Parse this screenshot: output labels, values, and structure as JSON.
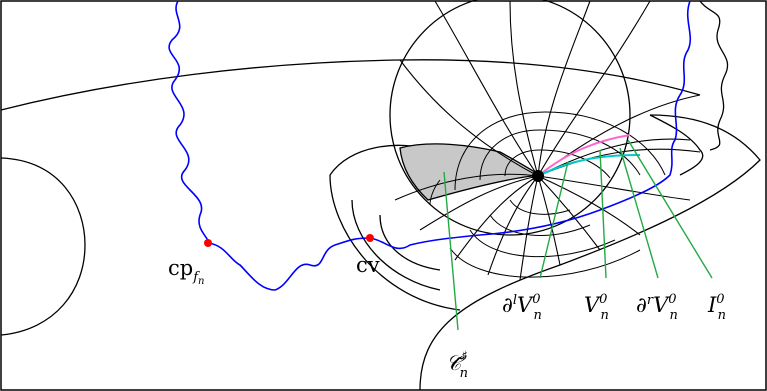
{
  "labels": {
    "cp": "cp",
    "cp_sub_f": "f",
    "cp_sub_n": "n",
    "cv": "cv",
    "dl": "∂",
    "dl_sup": "l",
    "dr": "∂",
    "dr_sup": "r",
    "V": "V",
    "I": "I",
    "n": "n",
    "zero": "0",
    "C": "𝒞̃",
    "sharp": "♯"
  },
  "colors": {
    "curve": "#0000ff",
    "marker": "#ff0000",
    "pointer": "#22aa44",
    "shaded": "#c8c8c8",
    "boundary_pink": "#ff66cc",
    "boundary_cyan": "#00cccc",
    "line": "#000000"
  }
}
